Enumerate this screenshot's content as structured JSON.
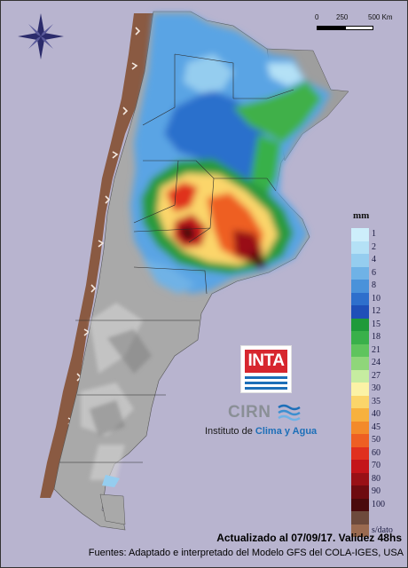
{
  "scale": {
    "labels": [
      "0",
      "250",
      "500 Km"
    ]
  },
  "legend": {
    "unit": "mm",
    "items": [
      {
        "label": "1",
        "color": "#cdeefb"
      },
      {
        "label": "2",
        "color": "#b4e1f6"
      },
      {
        "label": "4",
        "color": "#95cdef"
      },
      {
        "label": "6",
        "color": "#6fb2e6"
      },
      {
        "label": "8",
        "color": "#4a92da"
      },
      {
        "label": "10",
        "color": "#2e6fcc"
      },
      {
        "label": "12",
        "color": "#1f4fb8"
      },
      {
        "label": "15",
        "color": "#1f9a3a"
      },
      {
        "label": "18",
        "color": "#39b04a"
      },
      {
        "label": "21",
        "color": "#5fc45d"
      },
      {
        "label": "24",
        "color": "#8fd67a"
      },
      {
        "label": "27",
        "color": "#c6eca0"
      },
      {
        "label": "30",
        "color": "#fbf2a6"
      },
      {
        "label": "35",
        "color": "#fbd56a"
      },
      {
        "label": "40",
        "color": "#f7b13e"
      },
      {
        "label": "45",
        "color": "#f38a2a"
      },
      {
        "label": "50",
        "color": "#ee5f23"
      },
      {
        "label": "60",
        "color": "#e0301e"
      },
      {
        "label": "70",
        "color": "#c4141a"
      },
      {
        "label": "80",
        "color": "#991016"
      },
      {
        "label": "90",
        "color": "#6e0b10"
      },
      {
        "label": "100",
        "color": "#4a0a0c"
      },
      {
        "label": "",
        "color": "#6d4a3c"
      },
      {
        "label": "s/dato",
        "color": "#9a6a50"
      }
    ]
  },
  "logos": {
    "inta": "INTA",
    "cirn": "CIRN",
    "institute_prefix": "Instituto de ",
    "institute_name": "Clima y Agua"
  },
  "footer": {
    "updated": "Actualizado al 07/09/17. Validez 48hs",
    "source": "Fuentes: Adaptado e interpretado del Modelo GFS del COLA-IGES, USA"
  }
}
